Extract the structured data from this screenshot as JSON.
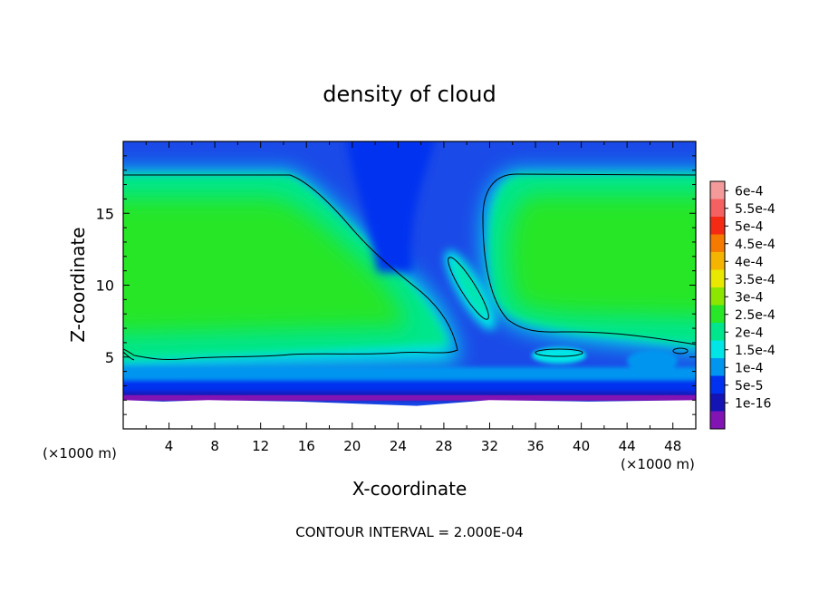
{
  "chart_data": {
    "type": "heatmap",
    "title": "density of cloud",
    "xlabel": "X-coordinate",
    "ylabel": "Z-coordinate",
    "x_unit_left": "(×1000 m)",
    "x_unit_right": "(×1000 m)",
    "footer": "CONTOUR INTERVAL = 2.000E-04",
    "xlim": [
      0,
      50
    ],
    "ylim": [
      0,
      20
    ],
    "x_ticks": [
      {
        "v": 4,
        "label": "4"
      },
      {
        "v": 8,
        "label": "8"
      },
      {
        "v": 12,
        "label": "12"
      },
      {
        "v": 16,
        "label": "16"
      },
      {
        "v": 20,
        "label": "20"
      },
      {
        "v": 24,
        "label": "24"
      },
      {
        "v": 28,
        "label": "28"
      },
      {
        "v": 32,
        "label": "32"
      },
      {
        "v": 36,
        "label": "36"
      },
      {
        "v": 40,
        "label": "40"
      },
      {
        "v": 44,
        "label": "44"
      },
      {
        "v": 48,
        "label": "48"
      }
    ],
    "y_ticks": [
      {
        "v": 5,
        "label": "5"
      },
      {
        "v": 10,
        "label": "10"
      },
      {
        "v": 15,
        "label": "15"
      }
    ],
    "colorbar": [
      {
        "label": "6e-4",
        "color": "#f59a9a"
      },
      {
        "label": "5.5e-4",
        "color": "#f56060"
      },
      {
        "label": "5e-4",
        "color": "#f52a14"
      },
      {
        "label": "4.5e-4",
        "color": "#f57a00"
      },
      {
        "label": "4e-4",
        "color": "#f5b400"
      },
      {
        "label": "3.5e-4",
        "color": "#e8e800"
      },
      {
        "label": "3e-4",
        "color": "#8ce600"
      },
      {
        "label": "2.5e-4",
        "color": "#28e628"
      },
      {
        "label": "2e-4",
        "color": "#00e68c"
      },
      {
        "label": "1.5e-4",
        "color": "#00e6e6"
      },
      {
        "label": "1e-4",
        "color": "#0096f0"
      },
      {
        "label": "5e-5",
        "color": "#0032f0"
      },
      {
        "label": "1e-16",
        "color": "#1414b4"
      },
      {
        "label": "",
        "color": "#8214b4"
      }
    ],
    "contour_interval": 0.0002,
    "field_summary": {
      "background_max": 0.00025,
      "cloud_base_km": 2.3,
      "cloud_top_km": 17.7,
      "left_cloud_x_range_km": [
        0,
        24
      ],
      "right_cloud_x_range_km": [
        31,
        50
      ],
      "gap_center_km": 23,
      "empty_below_km": 2.0
    }
  }
}
